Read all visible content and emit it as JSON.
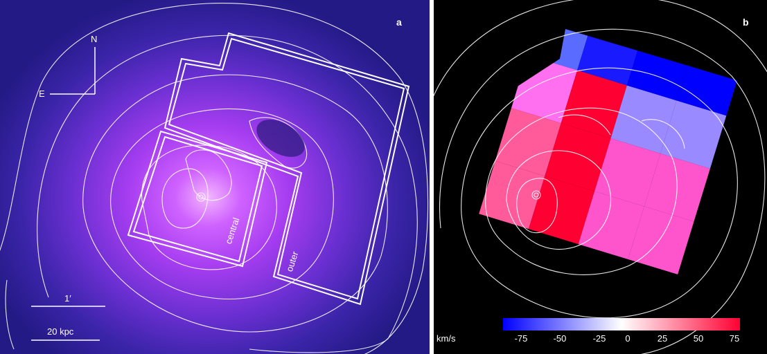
{
  "panel_a": {
    "letter": "a",
    "north": "N",
    "east": "E",
    "scale_angle": "1′",
    "scale_length": "20 kpc",
    "region_central": "central",
    "region_outer": "outer"
  },
  "panel_b": {
    "letter": "b",
    "colorbar_unit": "km/s",
    "colorbar_ticks": [
      "-75",
      "-50",
      "-25",
      "0",
      "25",
      "50",
      "75"
    ],
    "colors": {
      "neg": "#0000ff",
      "zero": "#ffffff",
      "pos": "#ff0033"
    }
  }
}
